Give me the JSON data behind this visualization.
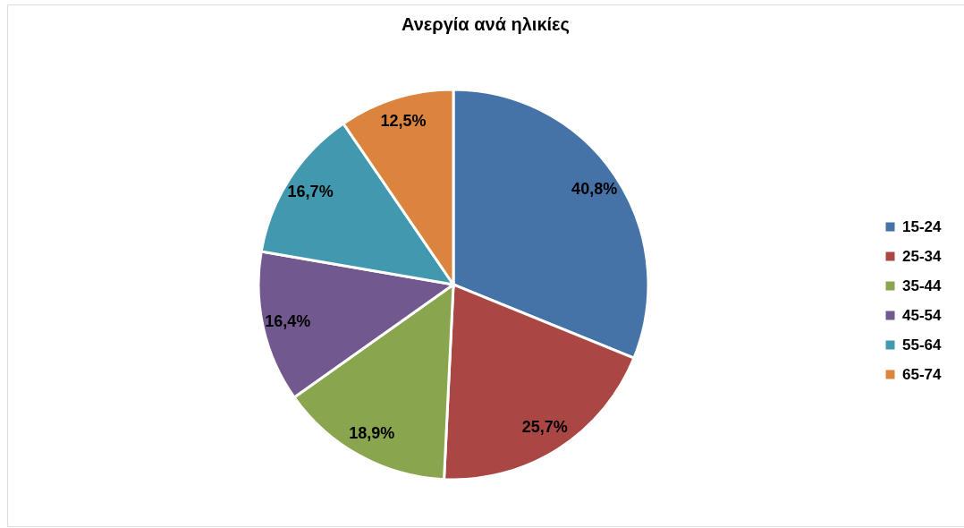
{
  "chart_data": {
    "type": "pie",
    "title": "Ανεργία ανά ηλικίες",
    "categories": [
      "15-24",
      "25-34",
      "35-44",
      "45-54",
      "55-64",
      "65-74"
    ],
    "values": [
      40.8,
      25.7,
      18.9,
      16.4,
      16.7,
      12.5
    ],
    "colors": [
      "#4572a7",
      "#aa4643",
      "#89a54e",
      "#71588f",
      "#4198af",
      "#db843d"
    ],
    "value_labels": [
      "40,8%",
      "25,7%",
      "18,9%",
      "16,4%",
      "16,7%",
      "12,5%"
    ],
    "legend": "right"
  }
}
